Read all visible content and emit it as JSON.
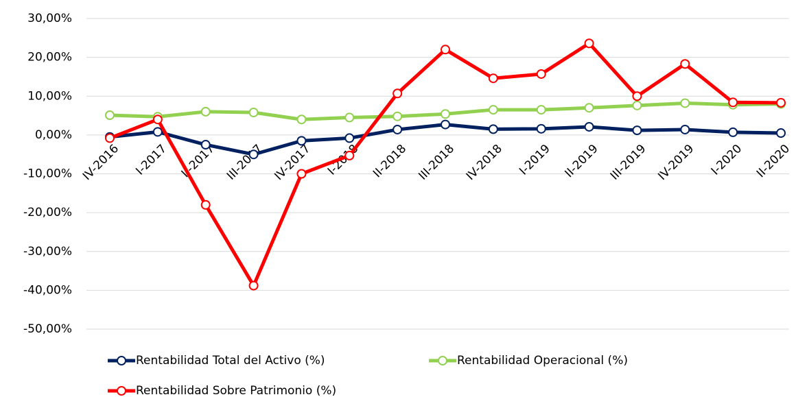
{
  "chart_data": {
    "type": "line",
    "categories": [
      "IV-2016",
      "I-2017",
      "II-2017",
      "III-2017",
      "IV-2017",
      "I-2018",
      "II-2018",
      "III-2018",
      "IV-2018",
      "I-2019",
      "II-2019",
      "III-2019",
      "IV-2019",
      "I-2020",
      "II-2020"
    ],
    "series": [
      {
        "name": "Rentabilidad Total del Activo (%)",
        "color": "#002060",
        "values": [
          -0.5,
          0.8,
          -2.5,
          -5,
          -1.5,
          -0.8,
          1.4,
          2.7,
          1.5,
          1.6,
          2.1,
          1.2,
          1.4,
          0.7,
          0.5
        ]
      },
      {
        "name": "Rentabilidad Operacional (%)",
        "color": "#92d050",
        "values": [
          5.1,
          4.7,
          6.0,
          5.8,
          4.0,
          4.5,
          4.8,
          5.4,
          6.5,
          6.5,
          7.0,
          7.6,
          8.2,
          7.8,
          8.0
        ]
      },
      {
        "name": "Rentabilidad Sobre Patrimonio (%)",
        "color": "#ff0000",
        "values": [
          -0.8,
          4.0,
          -18,
          -38.8,
          -10,
          -5.3,
          10.7,
          22,
          14.6,
          15.7,
          23.6,
          10,
          18.3,
          8.4,
          8.3
        ]
      }
    ],
    "ylim": [
      -50,
      30
    ],
    "yticks": [
      {
        "value": -50,
        "label": "-50,00%"
      },
      {
        "value": -40,
        "label": "-40,00%"
      },
      {
        "value": -30,
        "label": "-30,00%"
      },
      {
        "value": -20,
        "label": "-20,00%"
      },
      {
        "value": -10,
        "label": "-10,00%"
      },
      {
        "value": 0,
        "label": "0,00%"
      },
      {
        "value": 10,
        "label": "10,00%"
      },
      {
        "value": 20,
        "label": "20,00%"
      },
      {
        "value": 30,
        "label": "30,00%"
      }
    ],
    "grid": true
  }
}
